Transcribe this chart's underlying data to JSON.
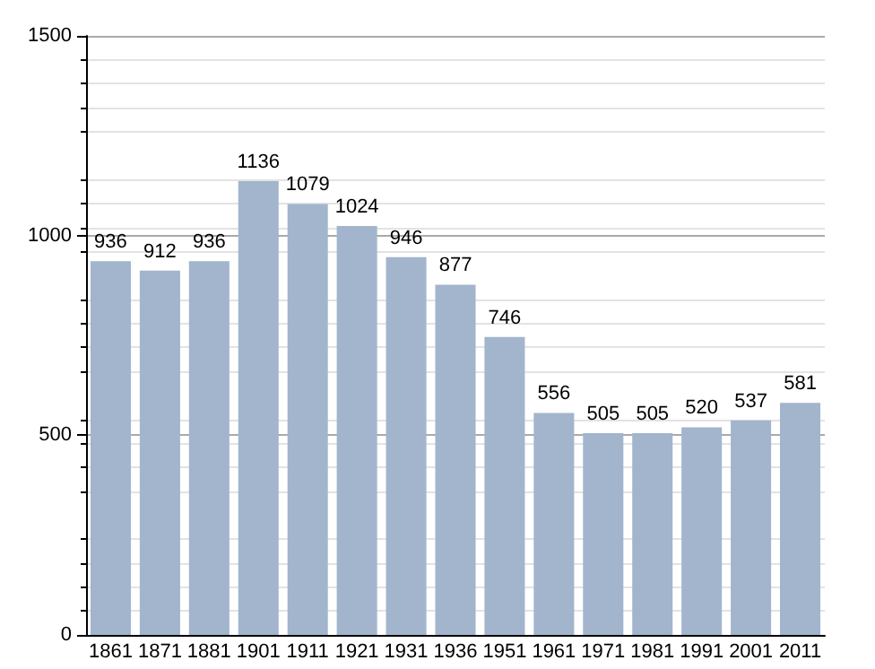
{
  "chart_data": {
    "type": "bar",
    "categories": [
      "1861",
      "1871",
      "1881",
      "1901",
      "1911",
      "1921",
      "1931",
      "1936",
      "1951",
      "1961",
      "1971",
      "1981",
      "1991",
      "2001",
      "2011"
    ],
    "values": [
      936,
      912,
      936,
      1136,
      1079,
      1024,
      946,
      877,
      746,
      556,
      505,
      505,
      520,
      537,
      581
    ],
    "color": "#a2b5cd",
    "ylim": [
      0,
      1500
    ],
    "yticks": [
      0,
      500,
      1000,
      1500
    ],
    "grid": "y",
    "data_labels": true
  }
}
